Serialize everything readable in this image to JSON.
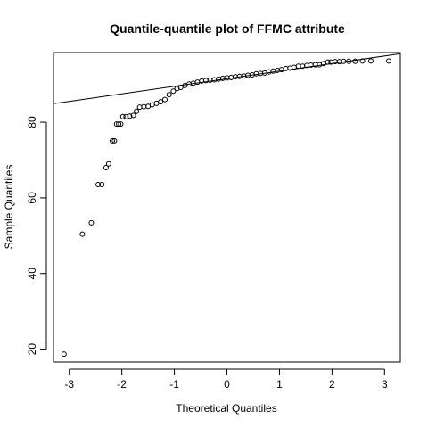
{
  "chart_data": {
    "type": "scatter",
    "title": "Quantile-quantile plot of FFMC attribute",
    "xlabel": "Theoretical Quantiles",
    "ylabel": "Sample Quantiles",
    "xlim": [
      -3.3,
      3.3
    ],
    "ylim": [
      16.6,
      98.4
    ],
    "xticks": [
      -3,
      -2,
      -1,
      0,
      1,
      2,
      3
    ],
    "yticks": [
      20,
      40,
      60,
      80
    ],
    "reference_line": {
      "x": [
        -3.3,
        3.3
      ],
      "y": [
        84.9,
        98.1
      ]
    },
    "grid": false,
    "points": [
      {
        "x": -3.1,
        "y": 18.7
      },
      {
        "x": -2.75,
        "y": 50.4
      },
      {
        "x": -2.58,
        "y": 53.4
      },
      {
        "x": -2.45,
        "y": 63.5
      },
      {
        "x": -2.38,
        "y": 63.5
      },
      {
        "x": -2.3,
        "y": 68.0
      },
      {
        "x": -2.25,
        "y": 69.0
      },
      {
        "x": -2.18,
        "y": 75.1
      },
      {
        "x": -2.14,
        "y": 75.1
      },
      {
        "x": -2.1,
        "y": 79.5
      },
      {
        "x": -2.06,
        "y": 79.5
      },
      {
        "x": -2.02,
        "y": 79.5
      },
      {
        "x": -1.98,
        "y": 81.5
      },
      {
        "x": -1.92,
        "y": 81.5
      },
      {
        "x": -1.85,
        "y": 81.6
      },
      {
        "x": -1.78,
        "y": 81.8
      },
      {
        "x": -1.72,
        "y": 82.9
      },
      {
        "x": -1.66,
        "y": 84.0
      },
      {
        "x": -1.58,
        "y": 84.1
      },
      {
        "x": -1.5,
        "y": 84.2
      },
      {
        "x": -1.42,
        "y": 84.6
      },
      {
        "x": -1.34,
        "y": 85.0
      },
      {
        "x": -1.26,
        "y": 85.4
      },
      {
        "x": -1.18,
        "y": 86.0
      },
      {
        "x": -1.1,
        "y": 87.3
      },
      {
        "x": -1.02,
        "y": 88.2
      },
      {
        "x": -0.95,
        "y": 88.9
      },
      {
        "x": -0.88,
        "y": 89.2
      },
      {
        "x": -0.8,
        "y": 89.7
      },
      {
        "x": -0.72,
        "y": 90.1
      },
      {
        "x": -0.64,
        "y": 90.3
      },
      {
        "x": -0.56,
        "y": 90.6
      },
      {
        "x": -0.48,
        "y": 90.9
      },
      {
        "x": -0.4,
        "y": 91.0
      },
      {
        "x": -0.32,
        "y": 91.1
      },
      {
        "x": -0.24,
        "y": 91.2
      },
      {
        "x": -0.16,
        "y": 91.4
      },
      {
        "x": -0.08,
        "y": 91.6
      },
      {
        "x": 0.0,
        "y": 91.7
      },
      {
        "x": 0.08,
        "y": 91.8
      },
      {
        "x": 0.16,
        "y": 92.0
      },
      {
        "x": 0.24,
        "y": 92.1
      },
      {
        "x": 0.32,
        "y": 92.2
      },
      {
        "x": 0.4,
        "y": 92.4
      },
      {
        "x": 0.48,
        "y": 92.5
      },
      {
        "x": 0.56,
        "y": 92.8
      },
      {
        "x": 0.64,
        "y": 92.9
      },
      {
        "x": 0.72,
        "y": 93.0
      },
      {
        "x": 0.8,
        "y": 93.3
      },
      {
        "x": 0.88,
        "y": 93.5
      },
      {
        "x": 0.96,
        "y": 93.7
      },
      {
        "x": 1.04,
        "y": 93.9
      },
      {
        "x": 1.12,
        "y": 94.2
      },
      {
        "x": 1.2,
        "y": 94.3
      },
      {
        "x": 1.28,
        "y": 94.5
      },
      {
        "x": 1.36,
        "y": 94.8
      },
      {
        "x": 1.44,
        "y": 94.8
      },
      {
        "x": 1.52,
        "y": 95.0
      },
      {
        "x": 1.6,
        "y": 95.1
      },
      {
        "x": 1.68,
        "y": 95.2
      },
      {
        "x": 1.76,
        "y": 95.2
      },
      {
        "x": 1.84,
        "y": 95.5
      },
      {
        "x": 1.92,
        "y": 95.9
      },
      {
        "x": 1.98,
        "y": 95.9
      },
      {
        "x": 2.06,
        "y": 96.0
      },
      {
        "x": 2.14,
        "y": 96.0
      },
      {
        "x": 2.22,
        "y": 96.1
      },
      {
        "x": 2.32,
        "y": 96.1
      },
      {
        "x": 2.44,
        "y": 96.1
      },
      {
        "x": 2.58,
        "y": 96.2
      },
      {
        "x": 2.74,
        "y": 96.2
      },
      {
        "x": 3.08,
        "y": 96.2
      }
    ]
  }
}
